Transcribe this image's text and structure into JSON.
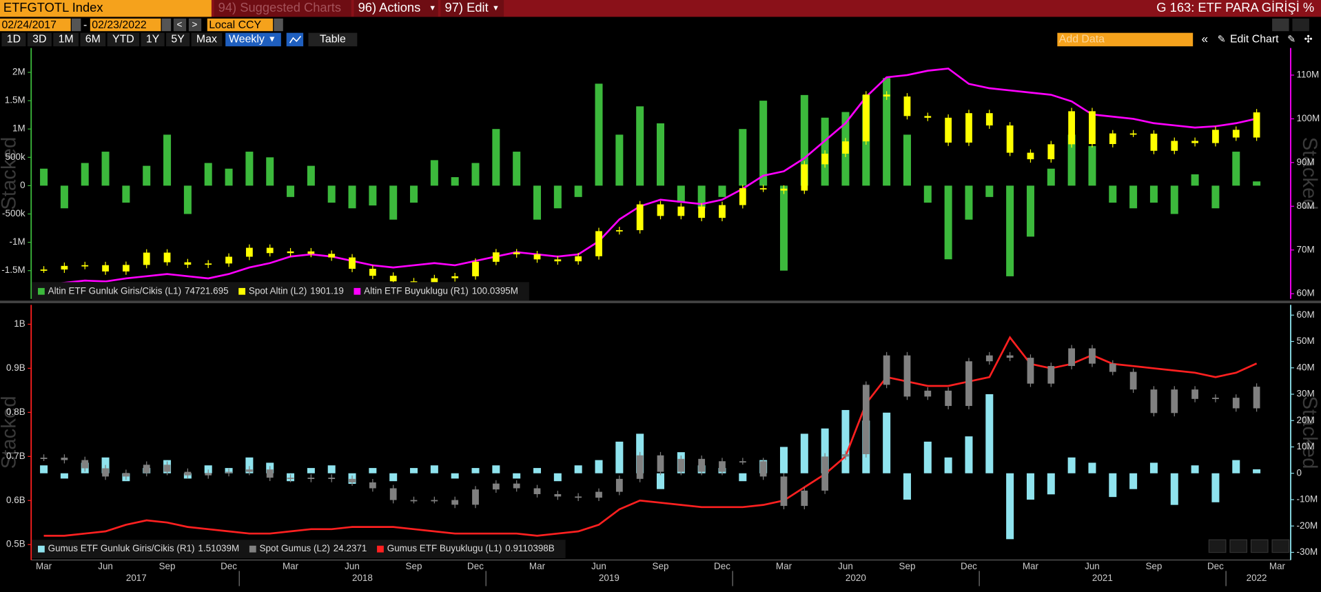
{
  "toolbar": {
    "ticker": "ETFGTOTL Index",
    "suggested": "94) Suggested Charts",
    "actions": "96) Actions",
    "edit": "97) Edit",
    "page_title": "G 163: ETF PARA GİRİŞİ %",
    "start_date": "02/24/2017",
    "end_date": "02/23/2022",
    "currency": "Local CCY",
    "periods": [
      "1D",
      "3D",
      "1M",
      "6M",
      "YTD",
      "1Y",
      "5Y",
      "Max"
    ],
    "frequency": "Weekly",
    "table": "Table",
    "add_data": "Add Data",
    "edit_chart": "Edit Chart"
  },
  "x_axis": {
    "categories": [
      "Mar",
      null,
      null,
      "Jun",
      null,
      null,
      "Sep",
      null,
      null,
      "Dec",
      null,
      null,
      "Mar",
      null,
      null,
      "Jun",
      null,
      null,
      "Sep",
      null,
      null,
      "Dec",
      null,
      null,
      "Mar",
      null,
      null,
      "Jun",
      null,
      null,
      "Sep",
      null,
      null,
      "Dec",
      null,
      null,
      "Mar",
      null,
      null,
      "Jun",
      null,
      null,
      "Sep",
      null,
      null,
      "Dec",
      null,
      null,
      "Mar",
      null,
      null,
      "Jun",
      null,
      null,
      "Sep",
      null,
      null,
      "Dec",
      null,
      null
    ],
    "end_label": "Mar",
    "years": [
      "2017",
      "2018",
      "2019",
      "2020",
      "2021",
      "2022"
    ]
  },
  "chart_data": [
    {
      "type": "combo",
      "ylabel": "Stacked",
      "y2label": "Stacked",
      "ylim": [
        -2000000,
        2430000
      ],
      "yticks": [
        {
          "value": -1500000,
          "label": "-1.5M"
        },
        {
          "value": -1000000,
          "label": "-1M"
        },
        {
          "value": -500000,
          "label": "-500k"
        },
        0,
        {
          "value": 500000,
          "label": "500k"
        },
        {
          "value": 1000000,
          "label": "1M"
        },
        {
          "value": 1500000,
          "label": "1.5M"
        },
        {
          "value": 2000000,
          "label": "2M"
        }
      ],
      "y2lim": [
        58800000,
        116200000
      ],
      "y2ticks": [
        {
          "value": 60000000,
          "label": "60M"
        },
        {
          "value": 70000000,
          "label": "70M"
        },
        {
          "value": 80000000,
          "label": "80M"
        },
        {
          "value": 90000000,
          "label": "90M"
        },
        {
          "value": 100000000,
          "label": "100M"
        },
        {
          "value": 110000000,
          "label": "110M"
        }
      ],
      "l2lim": [
        1128,
        2168
      ],
      "series": [
        {
          "name": "Altin ETF Gunluk Giris/Cikis (L1)",
          "legend_value": "74721.695",
          "color": "#3cb93c",
          "mark": "bar",
          "axis": "y",
          "values": [
            300000,
            -400000,
            400000,
            600000,
            -300000,
            350000,
            900000,
            -500000,
            400000,
            300000,
            600000,
            500000,
            -200000,
            350000,
            -300000,
            -400000,
            -350000,
            -600000,
            -300000,
            450000,
            150000,
            400000,
            1000000,
            600000,
            -600000,
            -400000,
            -200000,
            1800000,
            900000,
            1400000,
            1100000,
            -300000,
            -400000,
            -200000,
            1000000,
            1500000,
            -1500000,
            1600000,
            1200000,
            1300000,
            1600000,
            1900000,
            900000,
            -300000,
            -1300000,
            -600000,
            -200000,
            -1600000,
            -900000,
            300000,
            900000,
            700000,
            -300000,
            -400000,
            -300000,
            -500000,
            200000,
            -400000,
            600000,
            74721.695
          ]
        },
        {
          "name": "Spot Altin (L2)",
          "legend_value": "1901.19",
          "color": "#ffff00",
          "mark": "candle",
          "axis": "l2",
          "values": [
            1250,
            1265,
            1268,
            1242,
            1269,
            1320,
            1280,
            1270,
            1275,
            1303,
            1340,
            1318,
            1325,
            1315,
            1300,
            1253,
            1224,
            1201,
            1192,
            1214,
            1222,
            1282,
            1321,
            1313,
            1292,
            1284,
            1305,
            1409,
            1413,
            1520,
            1472,
            1511,
            1464,
            1517,
            1587,
            1585,
            1577,
            1686,
            1730,
            1781,
            1975,
            1967,
            1886,
            1879,
            1776,
            1898,
            1847,
            1734,
            1707,
            1769,
            1906,
            1770,
            1814,
            1813,
            1742,
            1783,
            1774,
            1829,
            1797,
            1901.19
          ]
        },
        {
          "name": "Altin ETF Buyuklugu (R1)",
          "legend_value": "100.0395M",
          "color": "#ff00ff",
          "mark": "line",
          "axis": "y2",
          "values": [
            62000000,
            62500000,
            63000000,
            62800000,
            63500000,
            64000000,
            64500000,
            64000000,
            63500000,
            64500000,
            66000000,
            67000000,
            68500000,
            69000000,
            68500000,
            67500000,
            66500000,
            66000000,
            66500000,
            67000000,
            66500000,
            67500000,
            68500000,
            69500000,
            69000000,
            68500000,
            69000000,
            72000000,
            77000000,
            80000000,
            81500000,
            81000000,
            80500000,
            81500000,
            84000000,
            87000000,
            88000000,
            91000000,
            95000000,
            99000000,
            105000000,
            109500000,
            110000000,
            111000000,
            111500000,
            108000000,
            107000000,
            106500000,
            106000000,
            105500000,
            104000000,
            101000000,
            100500000,
            100000000,
            99000000,
            98500000,
            98000000,
            98300000,
            99000000,
            100039500
          ]
        }
      ]
    },
    {
      "type": "combo",
      "ylabel": "Stacked",
      "y2label": "Stacked",
      "ylim": [
        465000000,
        1044000000
      ],
      "yticks": [
        {
          "value": 500000000,
          "label": "0.5B"
        },
        {
          "value": 600000000,
          "label": "0.6B"
        },
        {
          "value": 700000000,
          "label": "0.7B"
        },
        {
          "value": 800000000,
          "label": "0.8B"
        },
        {
          "value": 900000000,
          "label": "0.9B"
        },
        {
          "value": 1000000000,
          "label": "1B"
        }
      ],
      "y2lim": [
        -32900000,
        63900000
      ],
      "y2ticks": [
        {
          "value": -30000000,
          "label": "-30M"
        },
        {
          "value": -20000000,
          "label": "-20M"
        },
        {
          "value": -10000000,
          "label": "-10M"
        },
        0,
        {
          "value": 10000000,
          "label": "10M"
        },
        {
          "value": 20000000,
          "label": "20M"
        },
        {
          "value": 30000000,
          "label": "30M"
        },
        {
          "value": 40000000,
          "label": "40M"
        },
        {
          "value": 50000000,
          "label": "50M"
        },
        {
          "value": 60000000,
          "label": "60M"
        }
      ],
      "l2lim": [
        9.5,
        31.2
      ],
      "series": [
        {
          "name": "Gumus ETF Gunluk Giris/Cikis (R1)",
          "legend_value": "1.51039M",
          "color": "#8fe3ee",
          "mark": "bar",
          "axis": "y2",
          "values": [
            3000000,
            -2000000,
            4000000,
            6000000,
            -3000000,
            2000000,
            5000000,
            -2000000,
            3000000,
            2000000,
            6000000,
            4000000,
            -3000000,
            2000000,
            3000000,
            -4000000,
            2000000,
            -3000000,
            2000000,
            3000000,
            -2000000,
            2000000,
            3000000,
            -2000000,
            2000000,
            -3000000,
            3000000,
            5000000,
            12000000,
            15000000,
            -6000000,
            8000000,
            3000000,
            2000000,
            -3000000,
            5000000,
            10000000,
            15000000,
            17000000,
            24000000,
            20000000,
            23000000,
            -10000000,
            12000000,
            6000000,
            14000000,
            30000000,
            -25000000,
            -10000000,
            -8000000,
            6000000,
            4000000,
            -9000000,
            -6000000,
            4000000,
            -12000000,
            3000000,
            -11000000,
            5000000,
            1510390
          ]
        },
        {
          "name": "Spot Gumus (L2)",
          "legend_value": "24.2371",
          "color": "#808080",
          "mark": "candle",
          "axis": "l2",
          "values": [
            18.2,
            18.0,
            17.3,
            16.6,
            16.9,
            17.6,
            17.0,
            16.7,
            16.9,
            17.0,
            17.2,
            16.5,
            16.4,
            16.5,
            16.4,
            16.1,
            15.6,
            14.6,
            14.6,
            14.6,
            14.2,
            15.5,
            16.0,
            15.6,
            15.1,
            14.9,
            14.8,
            15.3,
            16.4,
            18.4,
            17.0,
            18.1,
            17.0,
            17.9,
            17.9,
            16.6,
            14.1,
            15.4,
            18.3,
            18.5,
            24.4,
            26.9,
            23.4,
            23.9,
            22.6,
            26.4,
            26.9,
            26.7,
            24.5,
            26.0,
            27.5,
            26.2,
            25.5,
            24.0,
            22.0,
            24.0,
            23.2,
            23.3,
            22.4,
            24.2371
          ]
        },
        {
          "name": "Gumus ETF Buyuklugu (L1)",
          "legend_value": "0.9110398B",
          "color": "#ff2020",
          "mark": "line",
          "axis": "y",
          "values": [
            520000000,
            520000000,
            525000000,
            530000000,
            545000000,
            555000000,
            550000000,
            540000000,
            535000000,
            530000000,
            525000000,
            525000000,
            530000000,
            535000000,
            535000000,
            540000000,
            540000000,
            540000000,
            535000000,
            530000000,
            525000000,
            525000000,
            525000000,
            525000000,
            520000000,
            525000000,
            530000000,
            545000000,
            580000000,
            600000000,
            595000000,
            590000000,
            585000000,
            585000000,
            585000000,
            590000000,
            600000000,
            630000000,
            660000000,
            700000000,
            820000000,
            880000000,
            870000000,
            860000000,
            860000000,
            870000000,
            880000000,
            970000000,
            910000000,
            900000000,
            910000000,
            930000000,
            910000000,
            905000000,
            900000000,
            895000000,
            890000000,
            880000000,
            890000000,
            911039800
          ]
        }
      ]
    }
  ]
}
